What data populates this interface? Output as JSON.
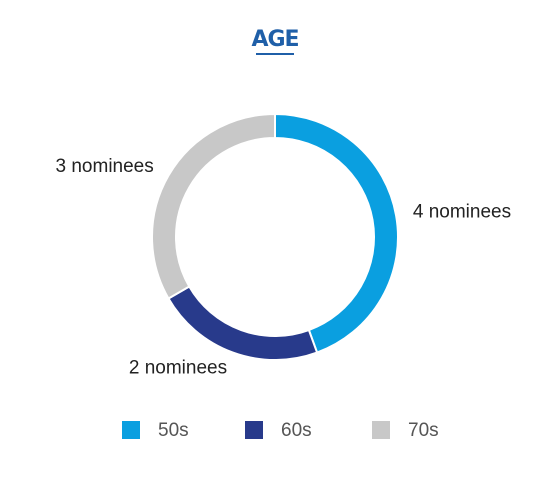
{
  "chart_data": {
    "type": "donut",
    "title": "AGE",
    "categories": [
      "50s",
      "60s",
      "70s"
    ],
    "values": [
      4,
      2,
      3
    ],
    "value_labels": [
      "4 nominees",
      "2 nominees",
      "3 nominees"
    ],
    "colors": [
      "#0a9fe0",
      "#283a8b",
      "#c8c8c8"
    ],
    "legend": "bottom"
  }
}
